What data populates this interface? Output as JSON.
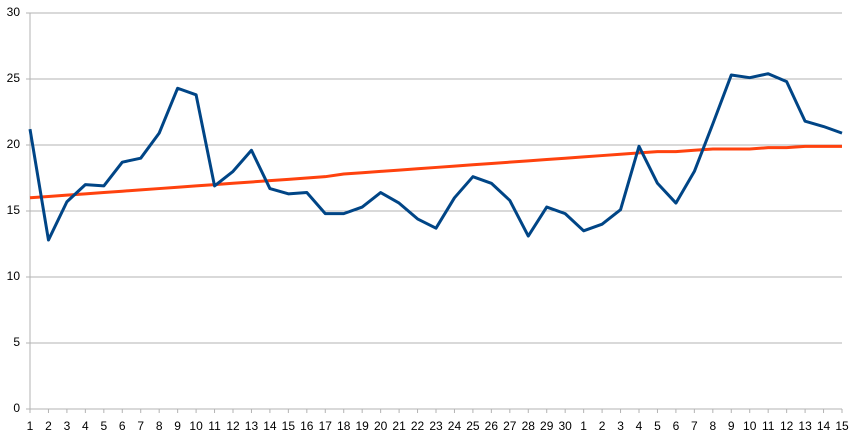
{
  "chart_data": {
    "type": "line",
    "categories": [
      "1",
      "2",
      "3",
      "4",
      "5",
      "6",
      "7",
      "8",
      "9",
      "10",
      "11",
      "12",
      "13",
      "14",
      "15",
      "16",
      "17",
      "18",
      "19",
      "20",
      "21",
      "22",
      "23",
      "24",
      "25",
      "26",
      "27",
      "28",
      "29",
      "30",
      "1",
      "2",
      "3",
      "4",
      "5",
      "6",
      "7",
      "8",
      "9",
      "10",
      "11",
      "12",
      "13",
      "14",
      "15"
    ],
    "series": [
      {
        "color": "#004586",
        "values": [
          21.2,
          12.8,
          15.7,
          17.0,
          16.9,
          18.7,
          19.0,
          20.9,
          24.3,
          23.8,
          16.9,
          18.0,
          19.6,
          16.7,
          16.3,
          16.4,
          14.8,
          14.8,
          15.3,
          16.4,
          15.6,
          14.4,
          13.7,
          16.0,
          17.6,
          17.1,
          15.8,
          13.1,
          15.3,
          14.8,
          13.5,
          14.0,
          15.1,
          19.9,
          17.1,
          15.6,
          18.0,
          21.6,
          25.3,
          25.1,
          25.4,
          24.8,
          21.8,
          21.4,
          20.9
        ]
      },
      {
        "color": "#ff420e",
        "values": [
          16.0,
          16.1,
          16.2,
          16.3,
          16.4,
          16.5,
          16.6,
          16.7,
          16.8,
          16.9,
          17.0,
          17.1,
          17.2,
          17.3,
          17.4,
          17.5,
          17.6,
          17.8,
          17.9,
          18.0,
          18.1,
          18.2,
          18.3,
          18.4,
          18.5,
          18.6,
          18.7,
          18.8,
          18.9,
          19.0,
          19.1,
          19.2,
          19.3,
          19.4,
          19.5,
          19.5,
          19.6,
          19.7,
          19.7,
          19.7,
          19.8,
          19.8,
          19.9,
          19.9,
          19.9
        ]
      }
    ],
    "ylim": [
      0,
      30
    ],
    "yticks": [
      0,
      5,
      10,
      15,
      20,
      25,
      30
    ],
    "grid": true
  }
}
